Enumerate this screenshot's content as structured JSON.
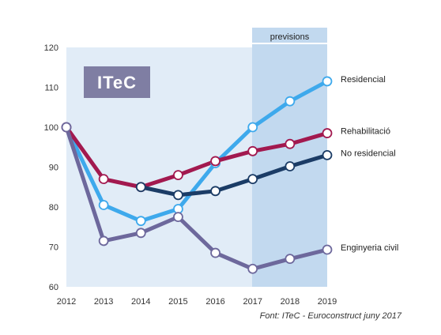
{
  "chart_data": {
    "type": "line",
    "title": "",
    "xlabel": "",
    "ylabel": "",
    "x": [
      2012,
      2013,
      2014,
      2015,
      2016,
      2017,
      2018,
      2019
    ],
    "x_labels": [
      "2012",
      "2013",
      "2014",
      "2015",
      "2016",
      "2017",
      "2018",
      "2019"
    ],
    "ylim": [
      60,
      120
    ],
    "y_ticks": [
      60,
      70,
      80,
      90,
      100,
      110,
      120
    ],
    "y_tick_labels": [
      "60",
      "70",
      "80",
      "90",
      "100",
      "110",
      "120"
    ],
    "grid": "off",
    "forecast_band": {
      "label": "previsions",
      "from": 2017,
      "to": 2019
    },
    "series": [
      {
        "name": "Residencial",
        "color": "#3ea9ec",
        "values": [
          100,
          80.5,
          76.5,
          79.5,
          91,
          100,
          106.5,
          111.5
        ]
      },
      {
        "name": "Rehabilitació",
        "color": "#a2194f",
        "values": [
          100,
          87,
          85,
          88,
          91.5,
          94,
          95.8,
          98.5
        ]
      },
      {
        "name": "No residencial",
        "color": "#1b3c66",
        "values": [
          null,
          null,
          85,
          83,
          84,
          87,
          90.2,
          93
        ]
      },
      {
        "name": "Enginyeria civil",
        "color": "#6d689c",
        "values": [
          100,
          71.5,
          73.5,
          77.5,
          68.5,
          64.5,
          67,
          69.3
        ]
      }
    ],
    "logo": "ITeC",
    "source": "Font: ITeC - Euroconstruct juny 2017"
  }
}
